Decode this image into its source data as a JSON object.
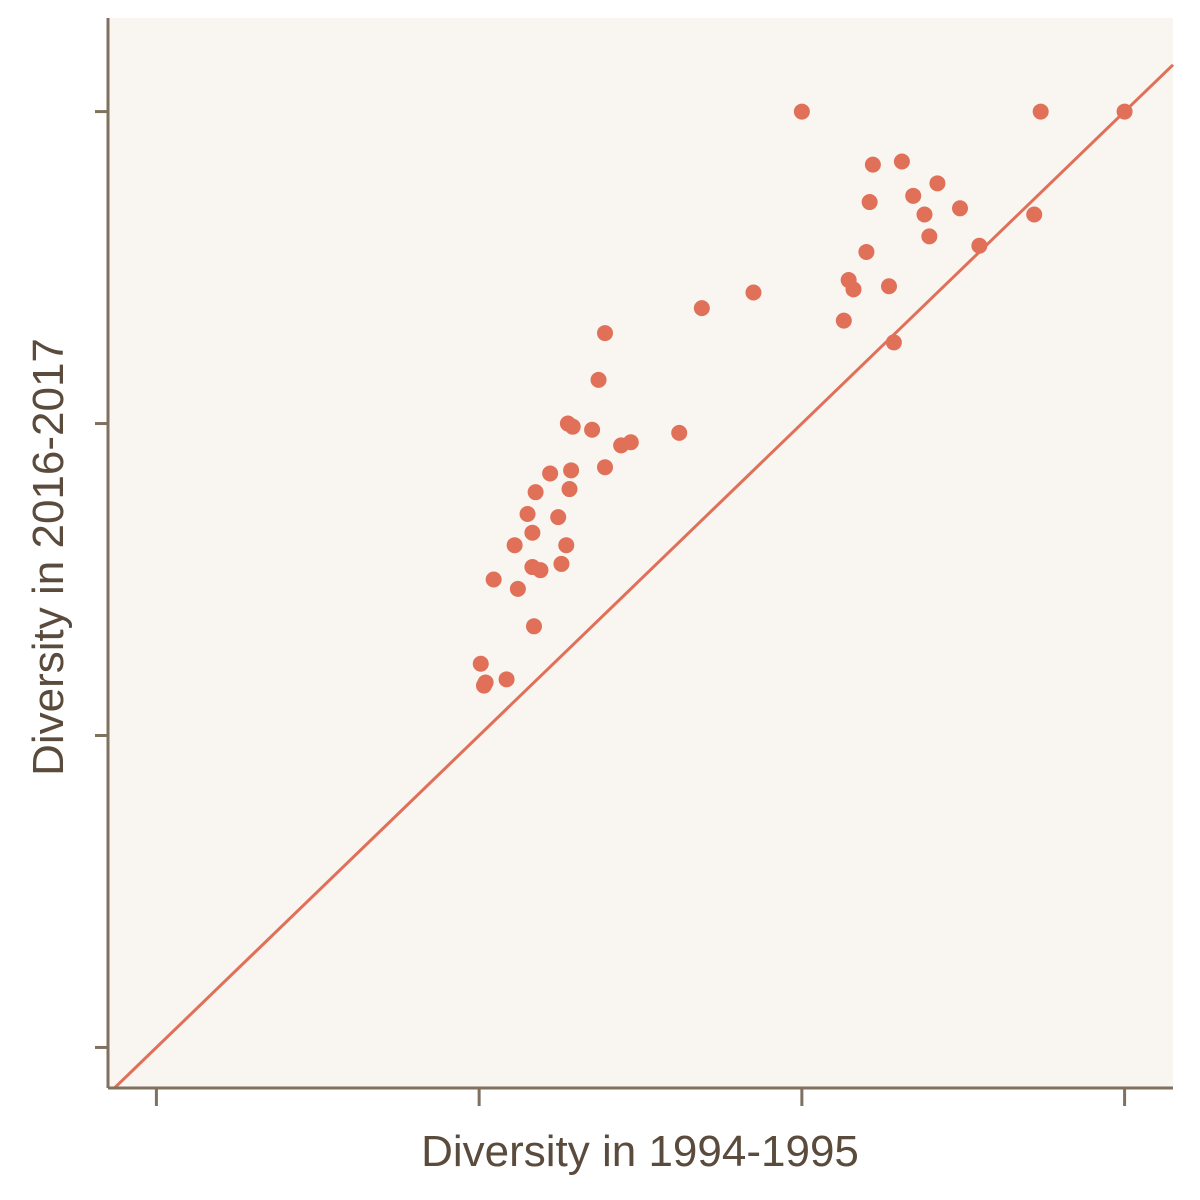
{
  "chart_data": {
    "type": "scatter",
    "title": "",
    "xlabel": "Diversity in 1994-1995",
    "ylabel": "Diversity in 2016-2017",
    "xlim": [
      -0.15,
      3.15
    ],
    "ylim": [
      -0.13,
      3.3
    ],
    "x_ticks": [
      0,
      1,
      2,
      3
    ],
    "y_ticks": [
      0,
      1,
      2,
      3
    ],
    "tick_labels_visible": false,
    "grid": false,
    "legend": "none",
    "reference_line": {
      "type": "identity",
      "slope": 1,
      "intercept": 0
    },
    "colors": {
      "points": "#e07058",
      "reference_line": "#e07058",
      "panel_background": "#f9f5f1",
      "axis": "#80705f",
      "text": "#5a4b3c"
    },
    "series": [
      {
        "points": [
          [
            1.005,
            1.23
          ],
          [
            1.02,
            1.17
          ],
          [
            1.015,
            1.16
          ],
          [
            1.045,
            1.5
          ],
          [
            1.085,
            1.18
          ],
          [
            1.11,
            1.61
          ],
          [
            1.12,
            1.47
          ],
          [
            1.15,
            1.71
          ],
          [
            1.165,
            1.65
          ],
          [
            1.17,
            1.35
          ],
          [
            1.165,
            1.54
          ],
          [
            1.175,
            1.78
          ],
          [
            1.19,
            1.53
          ],
          [
            1.22,
            1.84
          ],
          [
            1.245,
            1.7
          ],
          [
            1.255,
            1.55
          ],
          [
            1.27,
            1.61
          ],
          [
            1.275,
            2.0
          ],
          [
            1.28,
            1.79
          ],
          [
            1.285,
            1.85
          ],
          [
            1.29,
            1.99
          ],
          [
            1.35,
            1.98
          ],
          [
            1.37,
            2.14
          ],
          [
            1.39,
            1.86
          ],
          [
            1.39,
            2.29
          ],
          [
            1.44,
            1.93
          ],
          [
            1.47,
            1.94
          ],
          [
            1.62,
            1.97
          ],
          [
            1.69,
            2.37
          ],
          [
            1.85,
            2.42
          ],
          [
            2.0,
            3.0
          ],
          [
            2.13,
            2.33
          ],
          [
            2.145,
            2.46
          ],
          [
            2.16,
            2.43
          ],
          [
            2.2,
            2.55
          ],
          [
            2.21,
            2.71
          ],
          [
            2.22,
            2.83
          ],
          [
            2.27,
            2.44
          ],
          [
            2.285,
            2.26
          ],
          [
            2.31,
            2.84
          ],
          [
            2.345,
            2.73
          ],
          [
            2.38,
            2.67
          ],
          [
            2.395,
            2.6
          ],
          [
            2.42,
            2.77
          ],
          [
            2.49,
            2.69
          ],
          [
            2.55,
            2.57
          ],
          [
            2.72,
            2.67
          ],
          [
            2.74,
            3.0
          ],
          [
            3.0,
            3.0
          ]
        ]
      }
    ]
  }
}
